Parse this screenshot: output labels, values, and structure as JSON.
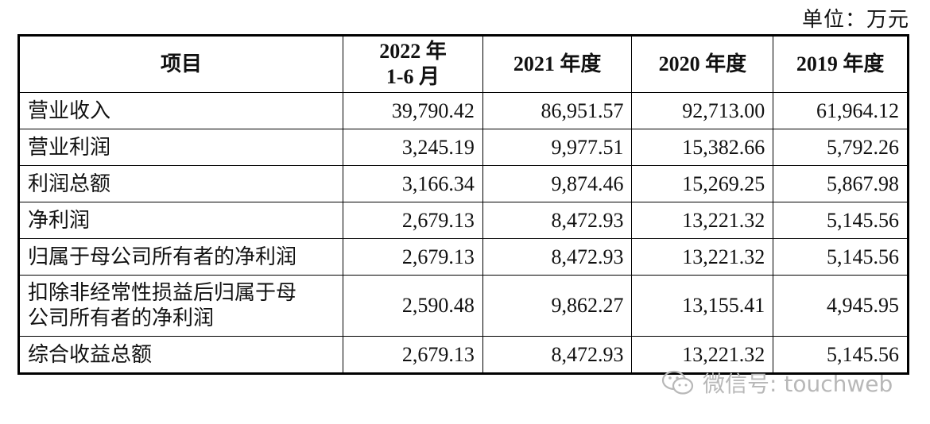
{
  "unit_label": "单位：万元",
  "table": {
    "headers": [
      "项目",
      "2022 年\n1-6 月",
      "2021 年度",
      "2020 年度",
      "2019 年度"
    ],
    "rows": [
      {
        "label": "营业收入",
        "values": [
          "39,790.42",
          "86,951.57",
          "92,713.00",
          "61,964.12"
        ]
      },
      {
        "label": "营业利润",
        "values": [
          "3,245.19",
          "9,977.51",
          "15,382.66",
          "5,792.26"
        ]
      },
      {
        "label": "利润总额",
        "values": [
          "3,166.34",
          "9,874.46",
          "15,269.25",
          "5,867.98"
        ]
      },
      {
        "label": "净利润",
        "values": [
          "2,679.13",
          "8,472.93",
          "13,221.32",
          "5,145.56"
        ]
      },
      {
        "label": "归属于母公司所有者的净利润",
        "values": [
          "2,679.13",
          "8,472.93",
          "13,221.32",
          "5,145.56"
        ]
      },
      {
        "label": "扣除非经常性损益后归属于母\n公司所有者的净利润",
        "values": [
          "2,590.48",
          "9,862.27",
          "13,155.41",
          "4,945.95"
        ]
      },
      {
        "label": "综合收益总额",
        "values": [
          "2,679.13",
          "8,472.93",
          "13,221.32",
          "5,145.56"
        ]
      }
    ]
  },
  "watermark": {
    "text": "微信号: touchweb",
    "icon": "wechat-icon"
  }
}
